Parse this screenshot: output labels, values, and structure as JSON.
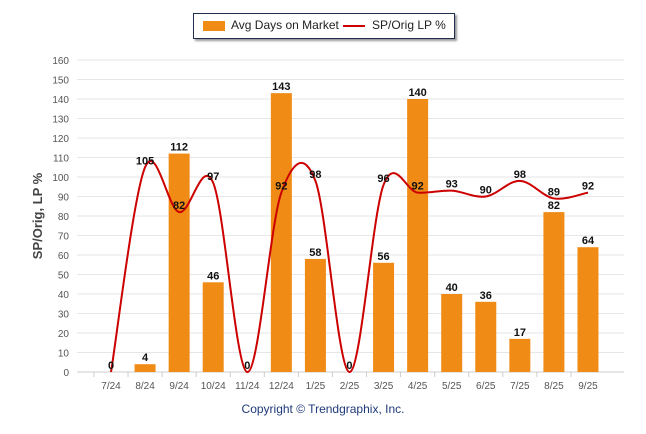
{
  "chart_data": {
    "type": "bar",
    "categories": [
      "7/24",
      "8/24",
      "9/24",
      "10/24",
      "11/24",
      "12/24",
      "1/25",
      "2/25",
      "3/25",
      "4/25",
      "5/25",
      "6/25",
      "7/25",
      "8/25",
      "9/25"
    ],
    "series": [
      {
        "name": "Avg Days on Market",
        "type": "bar",
        "color": "#f08c16",
        "values": [
          0,
          4,
          112,
          46,
          0,
          143,
          58,
          0,
          56,
          140,
          40,
          36,
          17,
          82,
          64
        ]
      },
      {
        "name": "SP/Orig LP %",
        "type": "line",
        "color": "#cc0000",
        "values": [
          0,
          105,
          82,
          97,
          0,
          92,
          98,
          0,
          96,
          92,
          93,
          90,
          98,
          89,
          92
        ]
      }
    ],
    "ylabel": "SP/Orig, LP %",
    "ylim": [
      0,
      160
    ],
    "yticks": [
      0,
      10,
      20,
      30,
      40,
      50,
      60,
      70,
      80,
      90,
      100,
      110,
      120,
      130,
      140,
      150,
      160
    ],
    "grid": true,
    "legend_position": "top-center"
  },
  "legend": {
    "bar_label": "Avg Days on Market",
    "line_label": "SP/Orig LP %"
  },
  "footer": {
    "copyright": "Copyright © Trendgraphix, Inc."
  }
}
